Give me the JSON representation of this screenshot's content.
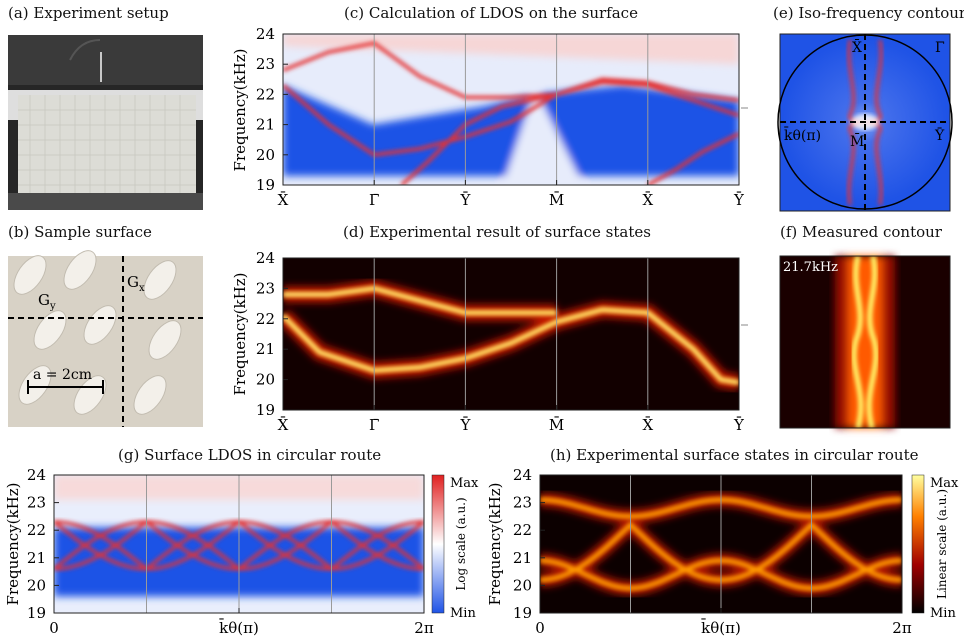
{
  "panels": {
    "a": {
      "title": "(a) Experiment setup"
    },
    "b": {
      "title": "(b) Sample surface",
      "label_gy": "G",
      "label_gy_sub": "y",
      "label_gx": "G",
      "label_gx_sub": "x",
      "scale_label": "a = 2cm"
    },
    "c": {
      "title": "(c) Calculation of LDOS on the surface"
    },
    "d": {
      "title": "(d) Experimental result of surface states"
    },
    "e": {
      "title": "(e) Iso-frequency contour",
      "label_x": "X̄",
      "label_gamma": "Γ̄",
      "label_y": "Ȳ",
      "label_m": "M̄",
      "label_k": "k̄θ(π)"
    },
    "f": {
      "title": "(f) Measured contour",
      "freq_label": "21.7kHz"
    },
    "g": {
      "title": "(g) Surface LDOS in circular route"
    },
    "h": {
      "title": "(h) Experimental surface states in circular route"
    }
  },
  "colors": {
    "blue": "#1f53e6",
    "red": "#e02020",
    "white": "#ffffff",
    "hot_dark": "#100000",
    "hot_mid": "#d02000",
    "hot_bright": "#ffff80"
  },
  "chart_data": [
    {
      "id": "c",
      "type": "heatmap",
      "title": "(c) Calculation of LDOS on the surface",
      "ylabel": "Frequency(kHz)",
      "ylim": [
        19,
        24
      ],
      "yticks": [
        19,
        20,
        21,
        22,
        23,
        24
      ],
      "xticklabels": [
        "X̄",
        "Γ̄",
        "Ȳ",
        "M̄",
        "X̄",
        "Ȳ"
      ],
      "colormap": "blue-white-red",
      "bands": [
        {
          "name": "",
          "x": [
            0,
            0.5,
            1,
            1.5,
            2,
            2.5,
            3,
            3.5,
            4,
            4.5,
            5
          ],
          "y": [
            22.3,
            21.0,
            20.0,
            20.2,
            20.6,
            21.1,
            22.0,
            22.4,
            22.3,
            21.8,
            21.3
          ]
        },
        {
          "name": "",
          "x": [
            0,
            0.5,
            1,
            1.5,
            2,
            2.5,
            3,
            3.5,
            4,
            4.5,
            5
          ],
          "y": [
            22.8,
            23.4,
            23.7,
            22.6,
            21.9,
            21.9,
            22.0,
            22.5,
            22.4,
            22.0,
            21.8
          ]
        },
        {
          "name": "",
          "x": [
            1.3,
            1.6,
            2,
            2.4,
            3
          ],
          "y": [
            19.0,
            19.8,
            21.0,
            21.6,
            22.0
          ]
        },
        {
          "name": "",
          "x": [
            4,
            4.3,
            4.6,
            5
          ],
          "y": [
            19.0,
            19.5,
            20.1,
            20.7
          ]
        }
      ]
    },
    {
      "id": "d",
      "type": "heatmap",
      "title": "(d) Experimental result of surface states",
      "ylabel": "Frequency(kHz)",
      "ylim": [
        19,
        24
      ],
      "yticks": [
        19,
        20,
        21,
        22,
        23,
        24
      ],
      "xticklabels": [
        "X̄",
        "Γ̄",
        "Ȳ",
        "M̄",
        "X̄",
        "Ȳ"
      ],
      "colormap": "hot",
      "bands": [
        {
          "name": "",
          "x": [
            0,
            0.4,
            1,
            1.5,
            2,
            2.5,
            3,
            3.5,
            4,
            4.5,
            4.8,
            5
          ],
          "y": [
            22.1,
            20.9,
            20.3,
            20.4,
            20.7,
            21.2,
            21.9,
            22.3,
            22.2,
            21.0,
            20.0,
            19.9
          ]
        },
        {
          "name": "",
          "x": [
            0,
            0.5,
            1,
            1.5,
            2,
            2.5,
            3
          ],
          "y": [
            22.8,
            22.8,
            23.0,
            22.6,
            22.2,
            22.2,
            22.2
          ]
        }
      ]
    },
    {
      "id": "g",
      "type": "heatmap",
      "title": "(g) Surface LDOS in circular route",
      "ylabel": "Frequency(kHz)",
      "ylim": [
        19,
        24
      ],
      "yticks": [
        19,
        20,
        21,
        22,
        23,
        24
      ],
      "xticklabels": [
        "0",
        "k̄θ(π)",
        "2π"
      ],
      "colorbar": {
        "label": "Log scale (a.u.)",
        "max_label": "Max",
        "min_label": "Min"
      },
      "colormap": "blue-white-red"
    },
    {
      "id": "h",
      "type": "heatmap",
      "title": "(h) Experimental surface states in circular route",
      "ylabel": "Frequency(kHz)",
      "ylim": [
        19,
        24
      ],
      "yticks": [
        19,
        20,
        21,
        22,
        23,
        24
      ],
      "xticklabels": [
        "0",
        "k̄θ(π)",
        "2π"
      ],
      "colorbar": {
        "label": "Linear scale (a.u.)",
        "max_label": "Max",
        "min_label": "Min"
      },
      "colormap": "hot"
    }
  ]
}
